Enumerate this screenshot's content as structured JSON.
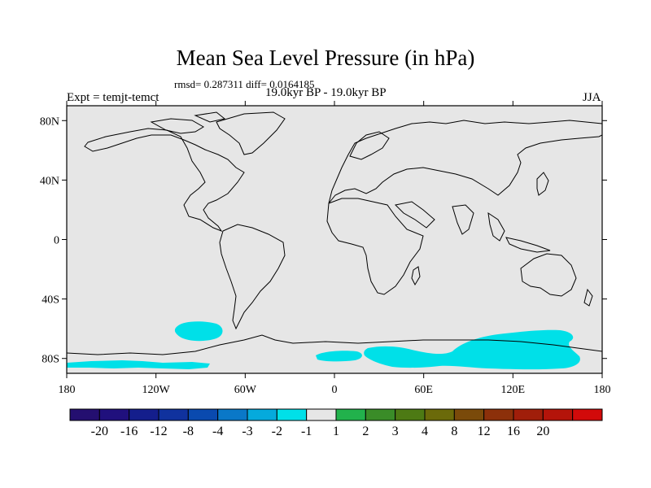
{
  "title": "Mean Sea Level Pressure (in hPa)",
  "stats": "rmsd= 0.287311 diff= 0.0164185",
  "experiment": "Expt = temjt-temct",
  "period": "19.0kyr BP - 19.0kyr BP",
  "season": "JJA",
  "map": {
    "projection": "cylindrical-equidistant",
    "lon_range": [
      -180,
      180
    ],
    "lat_range": [
      -90,
      90
    ],
    "lat_ticks": [
      {
        "value": 80,
        "label": "80N"
      },
      {
        "value": 40,
        "label": "40N"
      },
      {
        "value": 0,
        "label": "0"
      },
      {
        "value": -40,
        "label": "40S"
      },
      {
        "value": -80,
        "label": "80S"
      }
    ],
    "lon_ticks": [
      {
        "value": -180,
        "label": "180"
      },
      {
        "value": -120,
        "label": "120W"
      },
      {
        "value": -60,
        "label": "60W"
      },
      {
        "value": 0,
        "label": "0"
      },
      {
        "value": 60,
        "label": "60E"
      },
      {
        "value": 120,
        "label": "120E"
      },
      {
        "value": 180,
        "label": "180"
      }
    ],
    "background_color": "#e6e6e6",
    "anomaly_regions": [
      {
        "name": "south-pacific-patch",
        "bin": "-2 to -1",
        "color": "#00e0e8"
      },
      {
        "name": "antarctic-patches",
        "bin": "-2 to -1",
        "color": "#00e0e8"
      }
    ]
  },
  "colorbar": {
    "boxes": [
      {
        "color": "#240f70"
      },
      {
        "color": "#20107d"
      },
      {
        "color": "#141e8c"
      },
      {
        "color": "#10329e"
      },
      {
        "color": "#0a4aaf"
      },
      {
        "color": "#0a78c8"
      },
      {
        "color": "#05aadc"
      },
      {
        "color": "#00e0e8"
      },
      {
        "color": "#e6e6e6"
      },
      {
        "color": "#22b24c"
      },
      {
        "color": "#3a8c28"
      },
      {
        "color": "#4d7a14"
      },
      {
        "color": "#6b6a0a"
      },
      {
        "color": "#7a4a0a"
      },
      {
        "color": "#8c300a"
      },
      {
        "color": "#a01e0a"
      },
      {
        "color": "#b4140a"
      },
      {
        "color": "#d20a0a"
      }
    ],
    "labels": [
      "-20",
      "-16",
      "-12",
      "-8",
      "-4",
      "-3",
      "-2",
      "-1",
      "1",
      "2",
      "3",
      "4",
      "8",
      "12",
      "16",
      "20"
    ]
  }
}
